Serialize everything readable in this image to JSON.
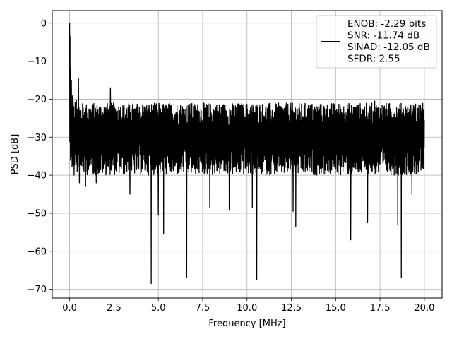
{
  "chart_data": {
    "type": "line",
    "title": "",
    "xlabel": "Frequency [MHz]",
    "ylabel": "PSD [dB]",
    "xlim": [
      -0.98,
      21.0
    ],
    "ylim": [
      -72.3,
      3.3
    ],
    "xticks": [
      0.0,
      2.5,
      5.0,
      7.5,
      10.0,
      12.5,
      15.0,
      17.5,
      20.0
    ],
    "xtick_labels": [
      "0.0",
      "2.5",
      "5.0",
      "7.5",
      "10.0",
      "12.5",
      "15.0",
      "17.5",
      "20.0"
    ],
    "yticks": [
      0,
      -10,
      -20,
      -30,
      -40,
      -50,
      -60,
      -70
    ],
    "ytick_labels": [
      "0",
      "−10",
      "−20",
      "−30",
      "−40",
      "−50",
      "−60",
      "−70"
    ],
    "grid": true,
    "legend_position": "top-right",
    "legend_entries": [
      "ENOB: -2.29 bits",
      "SNR: -11.74 dB",
      "SINAD: -12.05 dB",
      "SFDR: 2.55"
    ],
    "series": [
      {
        "color": "#000000",
        "noise_floor_db": -30,
        "upper_envelope_db": -21,
        "lower_envelope_db": -40,
        "peaks": [
          {
            "x": 0.0,
            "y": 0.0
          },
          {
            "x": 0.02,
            "y": -3.5
          },
          {
            "x": 0.05,
            "y": -12.0
          },
          {
            "x": 0.1,
            "y": -15.0
          },
          {
            "x": 0.5,
            "y": -14.5
          },
          {
            "x": 1.5,
            "y": -16.0
          },
          {
            "x": 2.3,
            "y": -17.0
          },
          {
            "x": 3.4,
            "y": -17.5
          },
          {
            "x": 17.2,
            "y": -20.5
          }
        ],
        "dips": [
          {
            "x": 0.25,
            "y": -40.0
          },
          {
            "x": 0.55,
            "y": -42.0
          },
          {
            "x": 0.9,
            "y": -43.0
          },
          {
            "x": 1.5,
            "y": -42.0
          },
          {
            "x": 3.4,
            "y": -45.0
          },
          {
            "x": 4.6,
            "y": -68.5
          },
          {
            "x": 5.0,
            "y": -50.5
          },
          {
            "x": 5.3,
            "y": -55.5
          },
          {
            "x": 6.6,
            "y": -67.0
          },
          {
            "x": 7.9,
            "y": -48.5
          },
          {
            "x": 9.0,
            "y": -49.0
          },
          {
            "x": 10.3,
            "y": -48.5
          },
          {
            "x": 10.55,
            "y": -67.5
          },
          {
            "x": 12.6,
            "y": -49.5
          },
          {
            "x": 12.75,
            "y": -53.5
          },
          {
            "x": 15.85,
            "y": -57.0
          },
          {
            "x": 16.8,
            "y": -52.5
          },
          {
            "x": 18.5,
            "y": -53.0
          },
          {
            "x": 18.7,
            "y": -67.0
          },
          {
            "x": 19.3,
            "y": -45.0
          }
        ]
      }
    ]
  }
}
